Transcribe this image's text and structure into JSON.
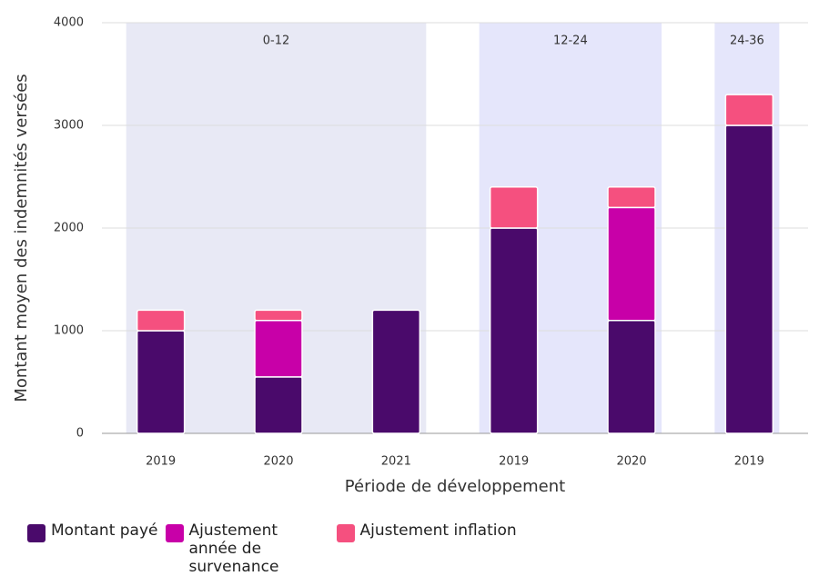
{
  "chart_data": {
    "type": "stacked_bar",
    "y_label": "Montant moyen des indemnités versées",
    "x_label": "Période de développement",
    "categories": [
      "2019",
      "2020",
      "2021",
      "2019",
      "2020",
      "2019"
    ],
    "groups": [
      {
        "label": "0-12",
        "categories": [
          0,
          1,
          2
        ],
        "color": "#e8e9f5"
      },
      {
        "label": "12-24",
        "categories": [
          3,
          4
        ],
        "color": "#e5e6fb"
      },
      {
        "label": "24-36",
        "categories": [
          5
        ],
        "color": "#e5e6fb"
      }
    ],
    "series": [
      {
        "name": "Montant payé",
        "color": "#4a0a6b",
        "values": [
          1000,
          550,
          1200,
          2000,
          1100,
          3000
        ]
      },
      {
        "name": "Ajustement année de survenance",
        "color": "#c800a8",
        "values": [
          0,
          550,
          0,
          0,
          1100,
          0
        ]
      },
      {
        "name": "Ajustement inflation",
        "color": "#f5507f",
        "values": [
          200,
          100,
          0,
          400,
          200,
          300
        ]
      }
    ],
    "ylim": [
      0,
      4000
    ],
    "yticks": [
      0,
      1000,
      2000,
      3000,
      4000
    ],
    "grid": true
  }
}
